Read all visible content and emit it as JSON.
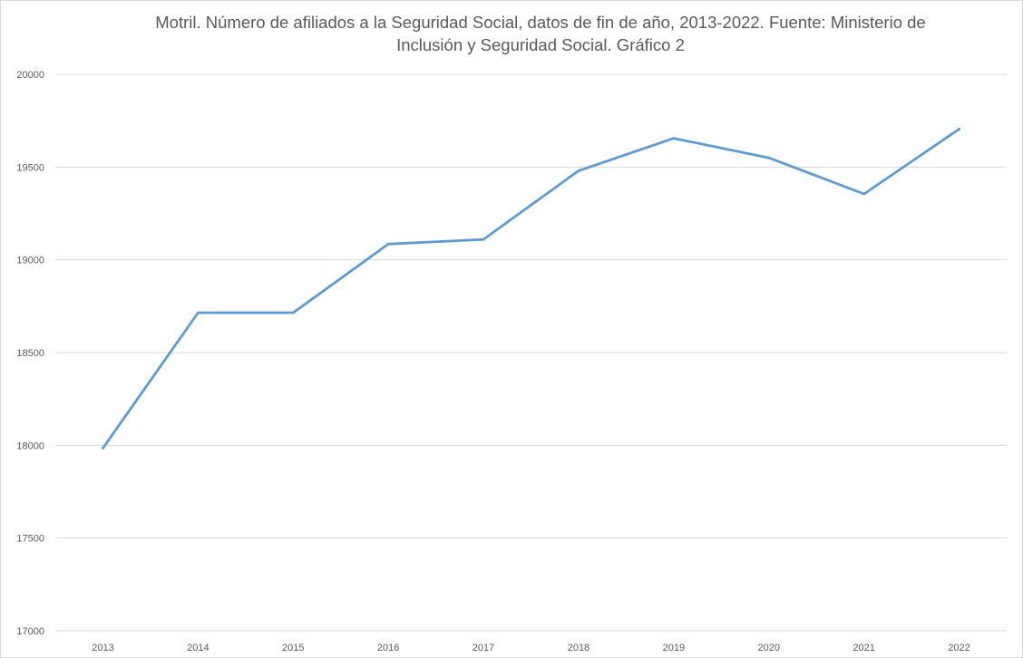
{
  "chart_data": {
    "type": "line",
    "title": "Motril. Número de afiliados a la Seguridad Social, datos de fin de año, 2013-2022. Fuente: Ministerio de Inclusión y Seguridad Social.    Gráfico 2",
    "xlabel": "",
    "ylabel": "",
    "categories": [
      "2013",
      "2014",
      "2015",
      "2016",
      "2017",
      "2018",
      "2019",
      "2020",
      "2021",
      "2022"
    ],
    "values": [
      17985,
      18715,
      18715,
      19085,
      19110,
      19480,
      19655,
      19550,
      19355,
      19705
    ],
    "ylim": [
      17000,
      20000
    ],
    "yticks": [
      "17000",
      "17500",
      "18000",
      "18500",
      "19000",
      "19500",
      "20000"
    ],
    "grid": true,
    "legend": "none",
    "line_color": "#5b9bd5",
    "grid_color": "#d9d9d9"
  }
}
